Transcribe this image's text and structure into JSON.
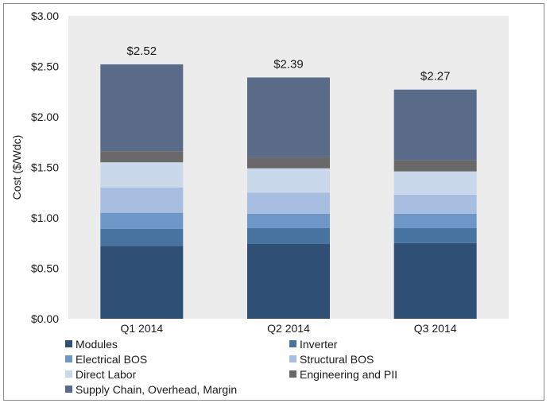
{
  "chart_data": {
    "type": "bar",
    "stacked": true,
    "categories": [
      "Q1 2014",
      "Q2 2014",
      "Q3 2014"
    ],
    "series": [
      {
        "name": "Modules",
        "color": "#2f4f75",
        "values": [
          0.72,
          0.74,
          0.75
        ]
      },
      {
        "name": "Inverter",
        "color": "#4874a2",
        "values": [
          0.17,
          0.16,
          0.15
        ]
      },
      {
        "name": "Electrical BOS",
        "color": "#6e97c8",
        "values": [
          0.16,
          0.14,
          0.14
        ]
      },
      {
        "name": "Structural BOS",
        "color": "#a8bee0",
        "values": [
          0.25,
          0.21,
          0.19
        ]
      },
      {
        "name": "Direct Labor",
        "color": "#cad8ec",
        "values": [
          0.25,
          0.24,
          0.23
        ]
      },
      {
        "name": "Engineering and PII",
        "color": "#696969",
        "values": [
          0.11,
          0.11,
          0.11
        ]
      },
      {
        "name": "Supply Chain, Overhead, Margin",
        "color": "#5a6b8a",
        "values": [
          0.86,
          0.79,
          0.7
        ]
      }
    ],
    "totals": [
      2.52,
      2.39,
      2.27
    ],
    "total_labels": [
      "$2.52",
      "$2.39",
      "$2.27"
    ],
    "ylabel": "Cost ($/Wdc)",
    "ylim": [
      0,
      3.0
    ],
    "yticks": [
      0,
      0.5,
      1.0,
      1.5,
      2.0,
      2.5,
      3.0
    ],
    "ytick_labels": [
      "$0.00",
      "$0.50",
      "$1.00",
      "$1.50",
      "$2.00",
      "$2.50",
      "$3.00"
    ],
    "plot_background": "#ececec",
    "grid": false,
    "legend_position": "bottom"
  }
}
